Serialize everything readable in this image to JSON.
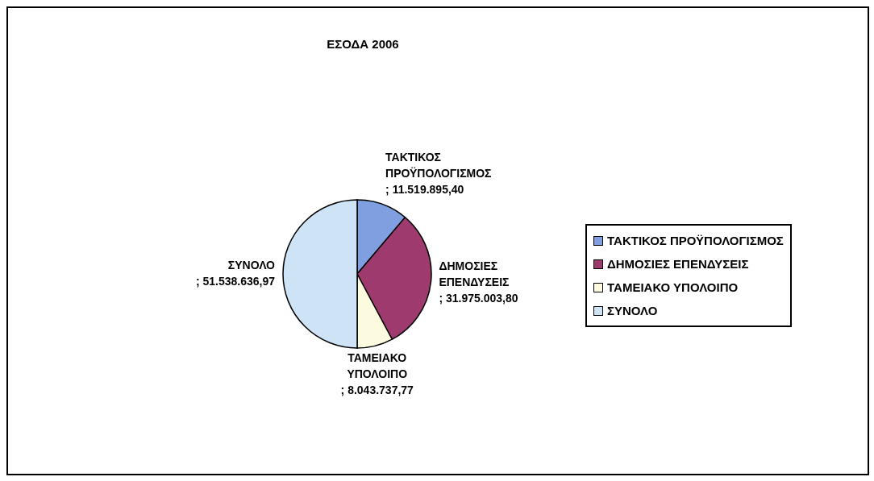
{
  "chart_data": {
    "type": "pie",
    "title": "ΕΣΟΔΑ 2006",
    "categories": [
      "ΤΑΚΤΙΚΟΣ ΠΡΟΫΠΟΛΟΓΙΣΜΟΣ",
      "ΔΗΜΟΣΙΕΣ ΕΠΕΝΔΥΣΕΙΣ",
      "ΤΑΜΕΙΑΚΟ ΥΠΟΛΟΙΠΟ",
      "ΣΥΝΟΛΟ"
    ],
    "values": [
      11519895.4,
      31975003.8,
      8043737.77,
      51538636.97
    ],
    "value_labels": [
      "; 11.519.895,40",
      "; 31.975.003,80",
      "; 8.043.737,77",
      "; 51.538.636,97"
    ],
    "colors": [
      "#7f9fe0",
      "#9e3a6e",
      "#fcfbe0",
      "#cfe3f7"
    ],
    "legend": "right"
  }
}
